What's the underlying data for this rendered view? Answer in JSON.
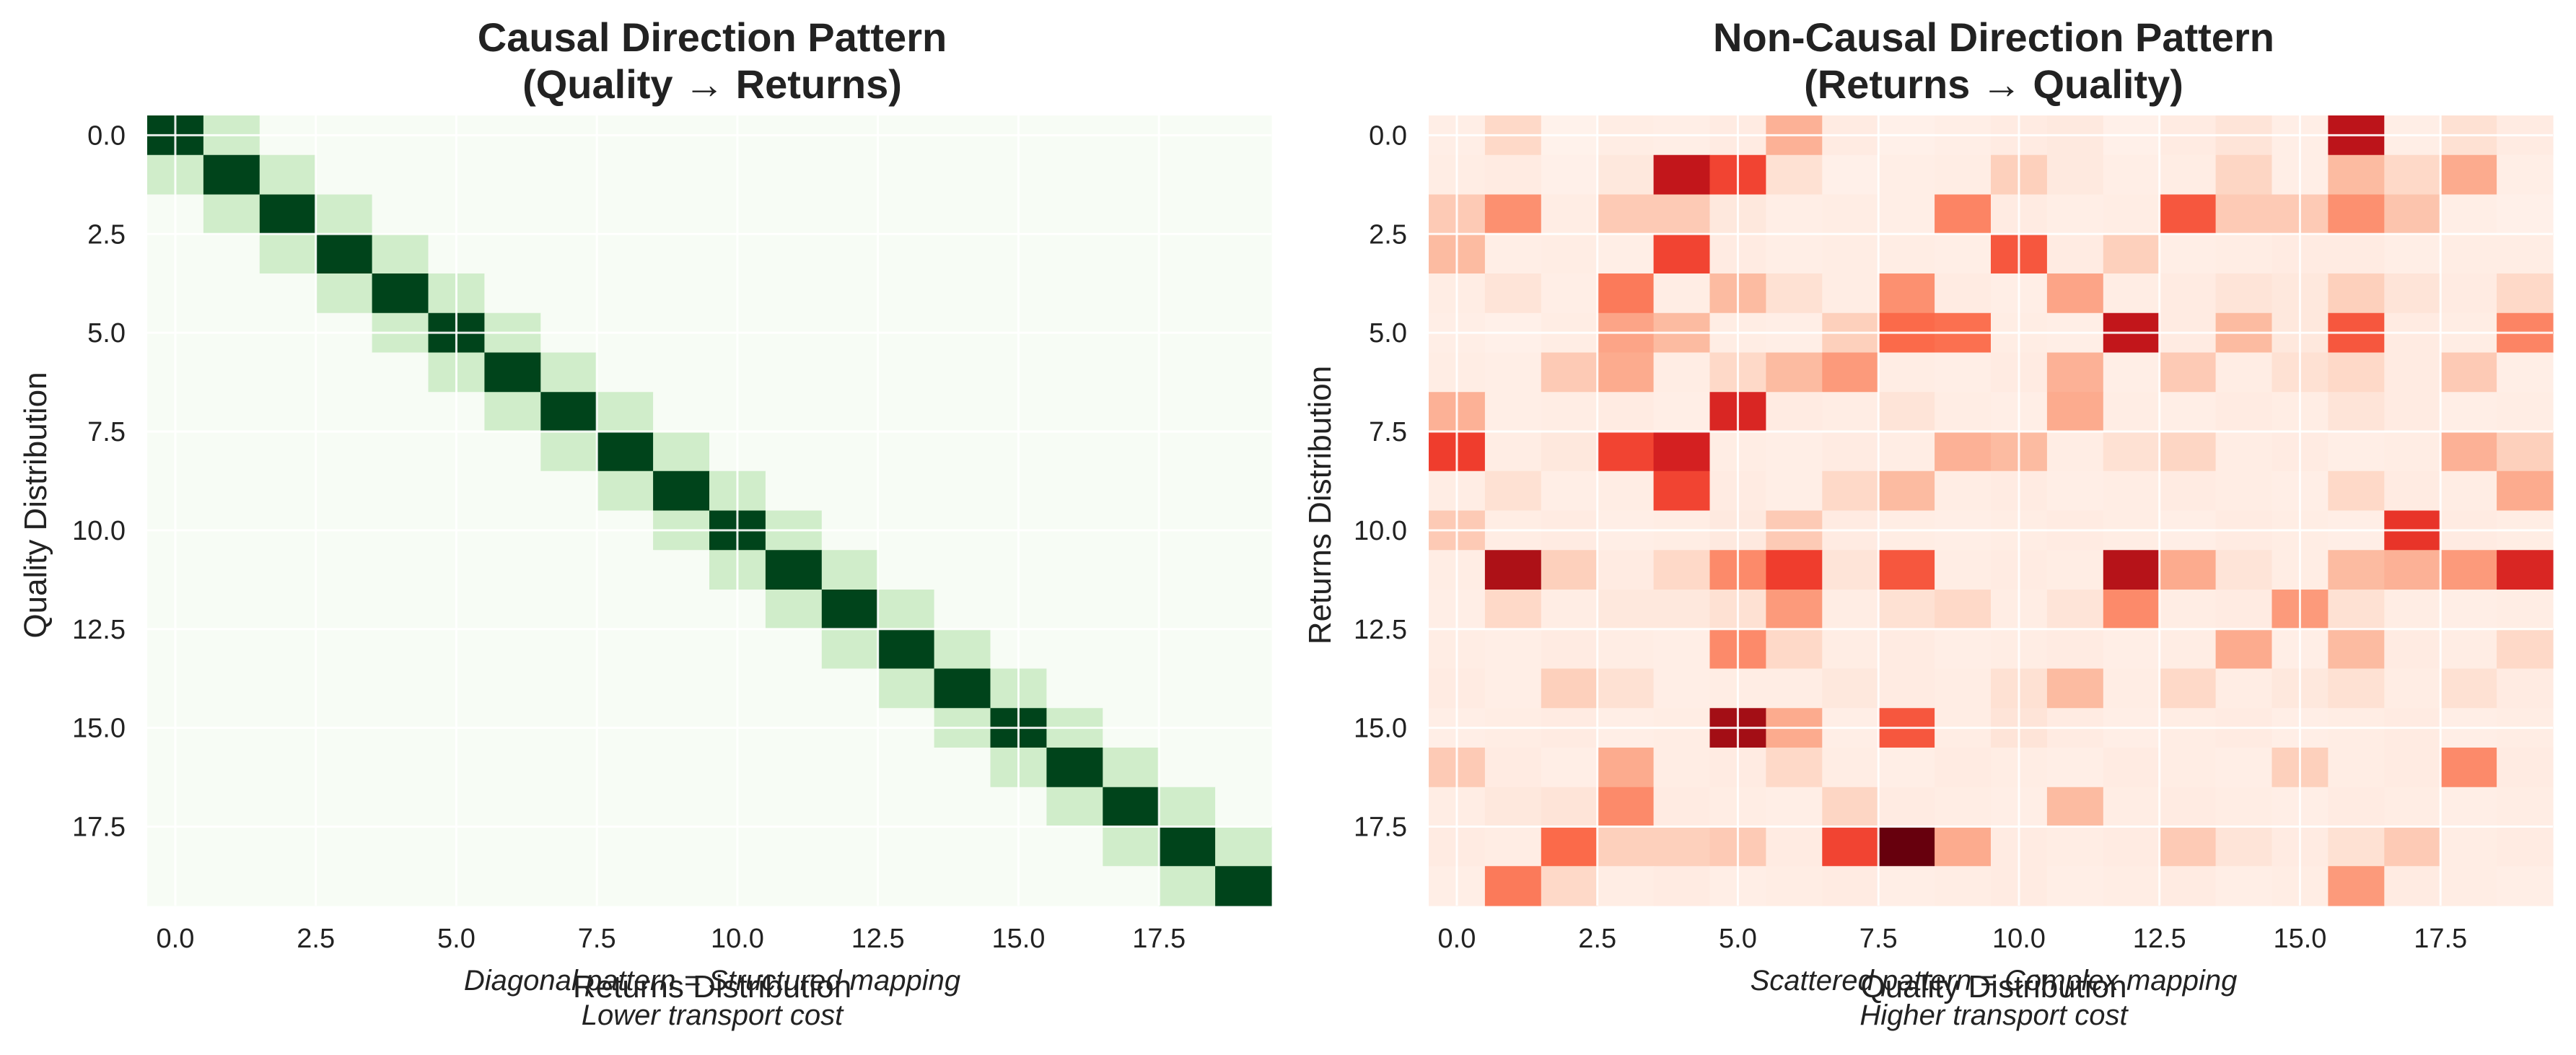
{
  "chart_data": [
    {
      "type": "heatmap",
      "title_lines": [
        "Causal Direction Pattern",
        "(Quality → Returns)"
      ],
      "xlabel": "Returns Distribution",
      "ylabel": "Quality Distribution",
      "xticks": [
        "0.0",
        "2.5",
        "5.0",
        "7.5",
        "10.0",
        "12.5",
        "15.0",
        "17.5"
      ],
      "yticks": [
        "0.0",
        "2.5",
        "5.0",
        "7.5",
        "10.0",
        "12.5",
        "15.0",
        "17.5"
      ],
      "grid": true,
      "colormap": "Greens",
      "colors": {
        "low": "#f7fcf5",
        "mid": "#d0edca",
        "high": "#00441b"
      },
      "shape": [
        20,
        20
      ],
      "pattern": "diagonal band: 1.0 on diagonal, 0.15 on adjacent cells, near 0 elsewhere",
      "annotation_lines": [
        "Diagonal pattern = Structured mapping",
        "Lower transport cost"
      ]
    },
    {
      "type": "heatmap",
      "title_lines": [
        "Non-Causal Direction Pattern",
        "(Returns → Quality)"
      ],
      "xlabel": "Quality Distribution",
      "ylabel": "Returns Distribution",
      "xticks": [
        "0.0",
        "2.5",
        "5.0",
        "7.5",
        "10.0",
        "12.5",
        "15.0",
        "17.5"
      ],
      "yticks": [
        "0.0",
        "2.5",
        "5.0",
        "7.5",
        "10.0",
        "12.5",
        "15.0",
        "17.5"
      ],
      "grid": true,
      "colormap": "Reds",
      "colors": {
        "low": "#fff5f0",
        "high": "#67000d"
      },
      "shape": [
        20,
        20
      ],
      "values": [
        [
          0.04,
          0.15,
          0.02,
          0.05,
          0.04,
          0.06,
          0.28,
          0.06,
          0.03,
          0.04,
          0.06,
          0.07,
          0.03,
          0.06,
          0.1,
          0.04,
          0.8,
          0.04,
          0.12,
          0.06
        ],
        [
          0.05,
          0.06,
          0.03,
          0.08,
          0.78,
          0.6,
          0.12,
          0.03,
          0.04,
          0.05,
          0.18,
          0.07,
          0.04,
          0.05,
          0.16,
          0.04,
          0.25,
          0.15,
          0.3,
          0.04
        ],
        [
          0.2,
          0.38,
          0.05,
          0.2,
          0.2,
          0.08,
          0.04,
          0.05,
          0.04,
          0.42,
          0.06,
          0.04,
          0.05,
          0.55,
          0.2,
          0.2,
          0.38,
          0.22,
          0.04,
          0.03
        ],
        [
          0.25,
          0.04,
          0.05,
          0.04,
          0.6,
          0.06,
          0.04,
          0.05,
          0.05,
          0.04,
          0.55,
          0.06,
          0.18,
          0.04,
          0.05,
          0.06,
          0.06,
          0.04,
          0.05,
          0.05
        ],
        [
          0.05,
          0.1,
          0.04,
          0.45,
          0.05,
          0.25,
          0.12,
          0.05,
          0.38,
          0.06,
          0.04,
          0.32,
          0.05,
          0.06,
          0.1,
          0.08,
          0.18,
          0.1,
          0.06,
          0.15
        ],
        [
          0.04,
          0.03,
          0.05,
          0.32,
          0.25,
          0.05,
          0.04,
          0.18,
          0.5,
          0.48,
          0.05,
          0.04,
          0.78,
          0.06,
          0.25,
          0.08,
          0.55,
          0.06,
          0.05,
          0.42
        ],
        [
          0.05,
          0.04,
          0.2,
          0.3,
          0.05,
          0.15,
          0.25,
          0.35,
          0.05,
          0.04,
          0.06,
          0.28,
          0.04,
          0.2,
          0.05,
          0.12,
          0.15,
          0.06,
          0.2,
          0.04
        ],
        [
          0.28,
          0.04,
          0.05,
          0.06,
          0.04,
          0.7,
          0.06,
          0.05,
          0.1,
          0.05,
          0.04,
          0.3,
          0.05,
          0.04,
          0.06,
          0.05,
          0.1,
          0.06,
          0.04,
          0.05
        ],
        [
          0.62,
          0.05,
          0.08,
          0.6,
          0.72,
          0.05,
          0.04,
          0.06,
          0.05,
          0.28,
          0.25,
          0.05,
          0.12,
          0.16,
          0.05,
          0.06,
          0.04,
          0.05,
          0.28,
          0.18
        ],
        [
          0.05,
          0.12,
          0.04,
          0.05,
          0.6,
          0.06,
          0.04,
          0.15,
          0.25,
          0.05,
          0.06,
          0.04,
          0.05,
          0.06,
          0.05,
          0.04,
          0.15,
          0.06,
          0.05,
          0.3
        ],
        [
          0.2,
          0.05,
          0.06,
          0.04,
          0.05,
          0.07,
          0.2,
          0.06,
          0.05,
          0.04,
          0.05,
          0.06,
          0.05,
          0.04,
          0.06,
          0.05,
          0.04,
          0.65,
          0.06,
          0.05
        ],
        [
          0.05,
          0.85,
          0.18,
          0.06,
          0.15,
          0.4,
          0.62,
          0.1,
          0.55,
          0.05,
          0.06,
          0.05,
          0.82,
          0.3,
          0.1,
          0.05,
          0.25,
          0.28,
          0.35,
          0.7
        ],
        [
          0.04,
          0.15,
          0.05,
          0.08,
          0.08,
          0.12,
          0.35,
          0.05,
          0.12,
          0.15,
          0.05,
          0.1,
          0.4,
          0.05,
          0.06,
          0.35,
          0.12,
          0.05,
          0.04,
          0.05
        ],
        [
          0.05,
          0.04,
          0.06,
          0.05,
          0.04,
          0.4,
          0.15,
          0.05,
          0.06,
          0.04,
          0.05,
          0.06,
          0.04,
          0.05,
          0.3,
          0.04,
          0.25,
          0.06,
          0.05,
          0.15
        ],
        [
          0.06,
          0.04,
          0.18,
          0.12,
          0.04,
          0.05,
          0.05,
          0.08,
          0.06,
          0.05,
          0.12,
          0.25,
          0.05,
          0.15,
          0.05,
          0.08,
          0.12,
          0.05,
          0.12,
          0.06
        ],
        [
          0.04,
          0.05,
          0.06,
          0.04,
          0.05,
          0.88,
          0.3,
          0.04,
          0.55,
          0.05,
          0.1,
          0.06,
          0.04,
          0.05,
          0.06,
          0.04,
          0.05,
          0.06,
          0.04,
          0.05
        ],
        [
          0.2,
          0.06,
          0.04,
          0.3,
          0.05,
          0.06,
          0.15,
          0.05,
          0.04,
          0.06,
          0.05,
          0.04,
          0.06,
          0.05,
          0.04,
          0.18,
          0.05,
          0.06,
          0.4,
          0.06
        ],
        [
          0.05,
          0.08,
          0.1,
          0.4,
          0.06,
          0.05,
          0.04,
          0.16,
          0.06,
          0.05,
          0.04,
          0.25,
          0.05,
          0.06,
          0.05,
          0.04,
          0.06,
          0.05,
          0.04,
          0.05
        ],
        [
          0.06,
          0.05,
          0.5,
          0.18,
          0.18,
          0.2,
          0.06,
          0.6,
          1.0,
          0.3,
          0.06,
          0.05,
          0.06,
          0.2,
          0.1,
          0.06,
          0.12,
          0.2,
          0.05,
          0.06
        ],
        [
          0.04,
          0.45,
          0.15,
          0.05,
          0.06,
          0.04,
          0.05,
          0.06,
          0.04,
          0.05,
          0.06,
          0.04,
          0.05,
          0.06,
          0.04,
          0.05,
          0.35,
          0.06,
          0.05,
          0.04
        ]
      ],
      "annotation_lines": [
        "Scattered pattern = Complex mapping",
        "Higher transport cost"
      ]
    }
  ]
}
